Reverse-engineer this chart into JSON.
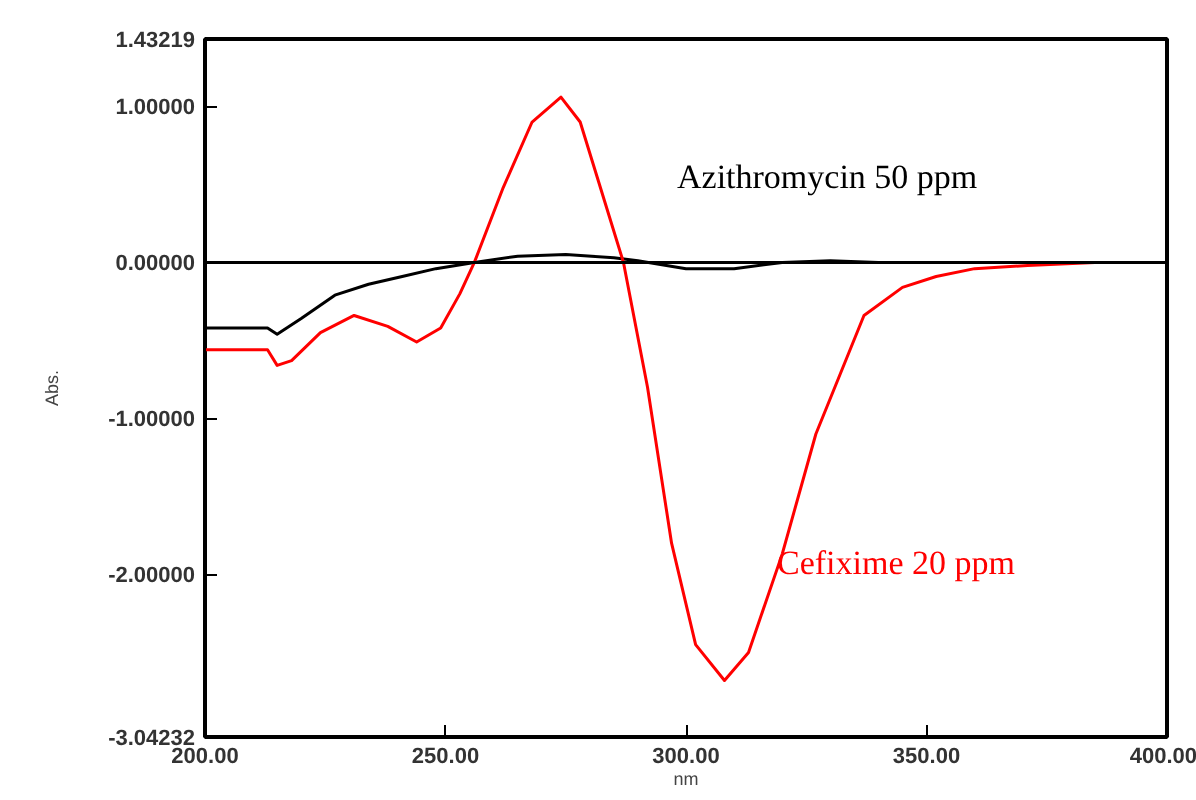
{
  "chart_data": {
    "type": "line",
    "xlabel": "nm",
    "ylabel": "Abs.",
    "xlim": [
      200,
      400
    ],
    "ylim": [
      -3.04232,
      1.43219
    ],
    "xticks": [
      {
        "value": 200,
        "label": "200.00"
      },
      {
        "value": 250,
        "label": "250.00"
      },
      {
        "value": 300,
        "label": "300.00"
      },
      {
        "value": 350,
        "label": "350.00"
      },
      {
        "value": 400,
        "label": "400.00"
      }
    ],
    "yticks": [
      {
        "value": -3.04232,
        "label": "-3.04232"
      },
      {
        "value": -2,
        "label": "-2.00000"
      },
      {
        "value": -1,
        "label": "-1.00000"
      },
      {
        "value": 0,
        "label": "0.00000"
      },
      {
        "value": 1,
        "label": "1.00000"
      },
      {
        "value": 1.43219,
        "label": "1.43219"
      }
    ],
    "grid": false,
    "line_style": "solid",
    "ref_lines": [
      {
        "axis": "y",
        "value": 0,
        "color": "#000000"
      }
    ],
    "series": [
      {
        "color": "#000000",
        "x": [
          200,
          213,
          215,
          220,
          227,
          234,
          241,
          248,
          256,
          265,
          275,
          285,
          290,
          300,
          310,
          320,
          330,
          340,
          400
        ],
        "values": [
          -0.42,
          -0.42,
          -0.46,
          -0.36,
          -0.21,
          -0.14,
          -0.09,
          -0.04,
          0,
          0.04,
          0.05,
          0.03,
          0.01,
          -0.04,
          -0.04,
          0,
          0.01,
          0,
          0
        ]
      },
      {
        "color": "#ff0000",
        "x": [
          200,
          213,
          215,
          218,
          224,
          231,
          238,
          244,
          249,
          253,
          256,
          262,
          268,
          274,
          278,
          283,
          287,
          292,
          297,
          302,
          308,
          313,
          320,
          327,
          337,
          345,
          352,
          360,
          371,
          385,
          400
        ],
        "values": [
          -0.56,
          -0.56,
          -0.66,
          -0.63,
          -0.45,
          -0.34,
          -0.41,
          -0.51,
          -0.42,
          -0.2,
          0,
          0.48,
          0.9,
          1.06,
          0.9,
          0.4,
          0,
          -0.8,
          -1.8,
          -2.45,
          -2.68,
          -2.5,
          -1.87,
          -1.1,
          -0.34,
          -0.16,
          -0.09,
          -0.04,
          -0.02,
          0,
          0
        ]
      }
    ],
    "annotations": [
      "Azithromycin 50 ppm",
      "Cefixime 20 ppm"
    ]
  }
}
